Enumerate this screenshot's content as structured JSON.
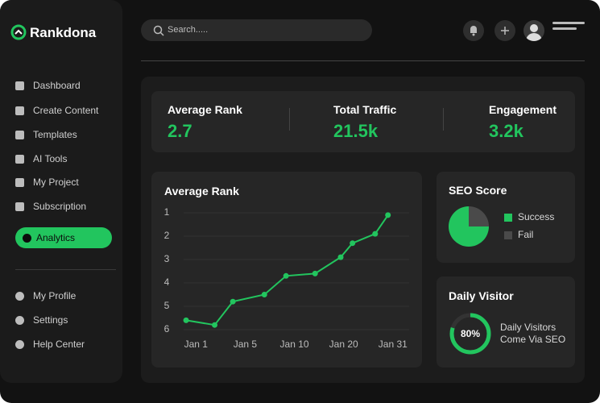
{
  "brand": "Rankdona",
  "search_placeholder": "Search.....",
  "nav": [
    "Dashboard",
    "Create Content",
    "Templates",
    "AI Tools",
    "My Project",
    "Subscription",
    "Analytics"
  ],
  "active_nav": 6,
  "nav_bottom": [
    "My Profile",
    "Settings",
    "Help Center"
  ],
  "stats": [
    {
      "label": "Average Rank",
      "value": "2.7"
    },
    {
      "label": "Total Traffic",
      "value": "21.5k"
    },
    {
      "label": "Engagement",
      "value": "3.2k"
    }
  ],
  "chart_data": [
    {
      "type": "line",
      "title": "Average Rank",
      "x": [
        -0.2,
        0.38,
        0.75,
        1.39,
        1.83,
        2.42,
        2.94,
        3.18,
        3.64,
        3.9
      ],
      "series": [
        {
          "name": "Average Rank",
          "color": "#22c55e",
          "values": [
            5.6,
            5.8,
            4.8,
            4.5,
            3.7,
            3.6,
            2.9,
            2.3,
            1.9,
            1.1
          ]
        }
      ],
      "xlim": [
        -0.25,
        4.33
      ],
      "xticks": [
        {
          "value": 0,
          "label": "Jan 1"
        },
        {
          "value": 1,
          "label": "Jan 5"
        },
        {
          "value": 2,
          "label": "Jan 10"
        },
        {
          "value": 3,
          "label": "Jan 20"
        },
        {
          "value": 4,
          "label": "Jan 31"
        }
      ],
      "ylim": [
        1,
        6
      ],
      "yticks": [
        1,
        2,
        3,
        4,
        5,
        6
      ],
      "y_inverted": true,
      "grid": true
    },
    {
      "type": "pie",
      "title": "SEO Score",
      "categories": [
        "Success",
        "Fail"
      ],
      "values": [
        75,
        25
      ],
      "colors": [
        "#22c55e",
        "#4a4a4a"
      ]
    },
    {
      "type": "gauge",
      "title": "Daily Visitor",
      "values": [
        80
      ],
      "value_labels": [
        "80%"
      ],
      "label": "Daily Visitors Come Via SEO",
      "max": 100,
      "color": "#22c55e"
    }
  ]
}
